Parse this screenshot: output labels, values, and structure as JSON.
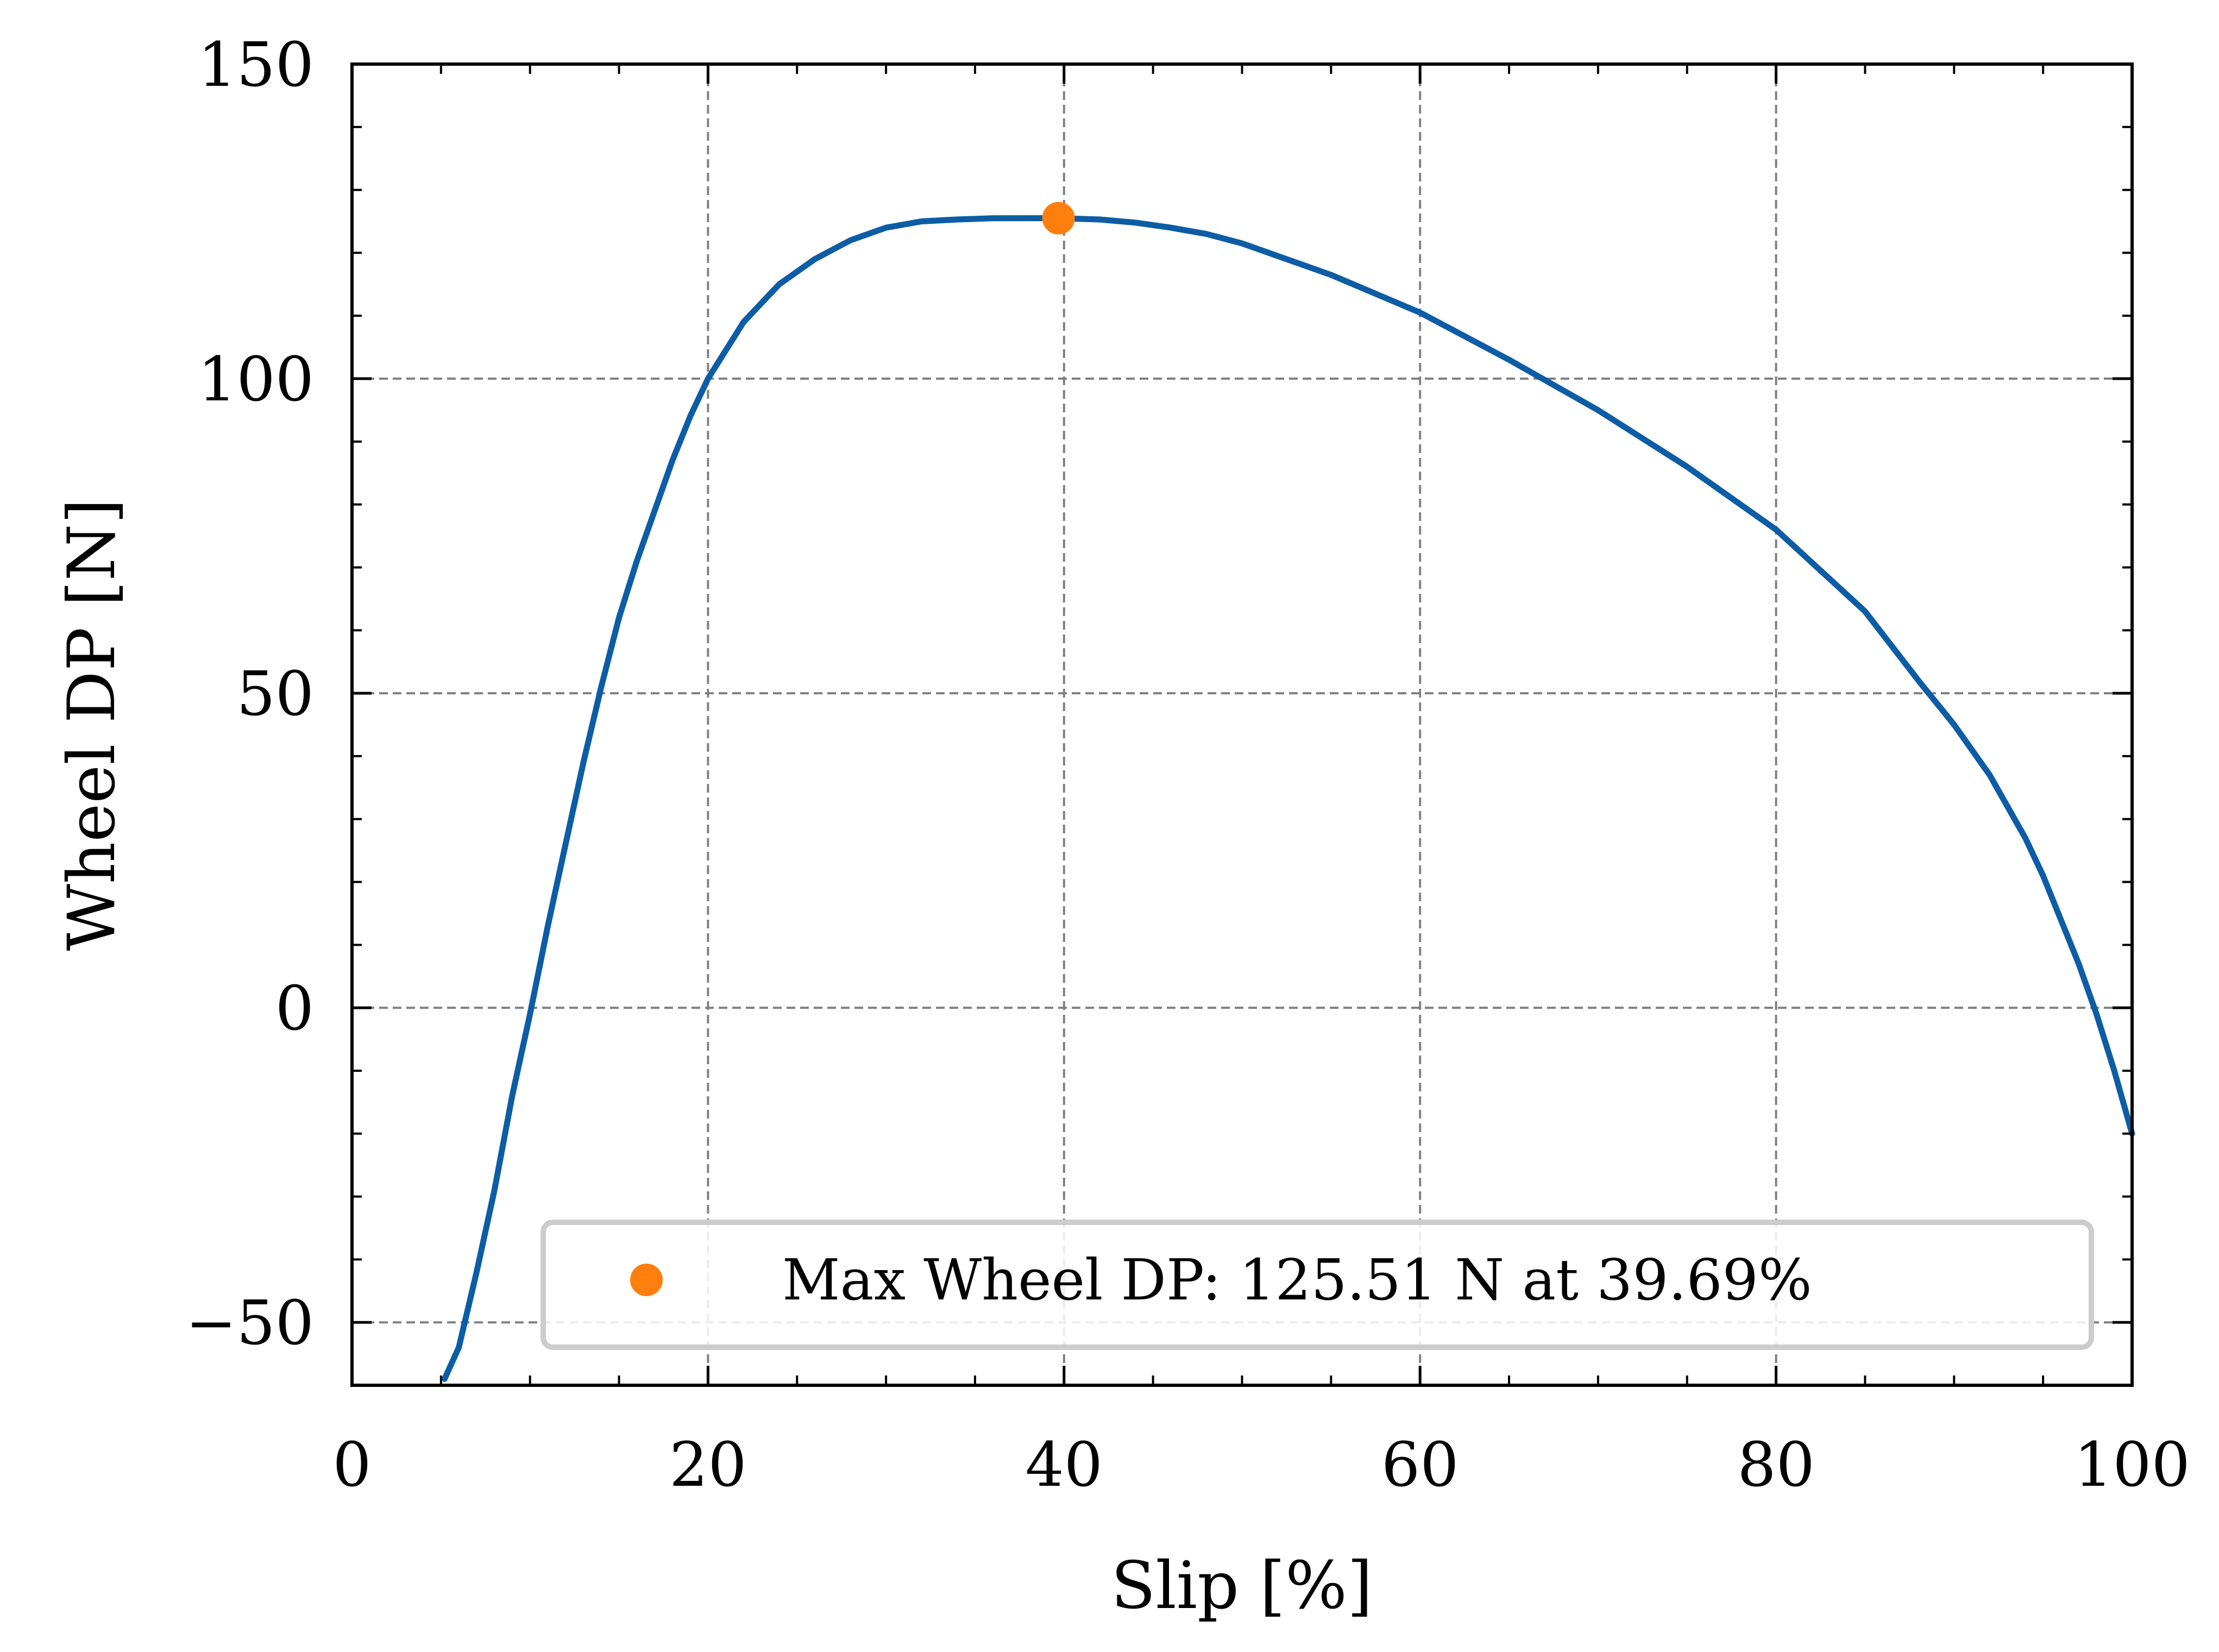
{
  "chart_data": {
    "type": "line",
    "title": "",
    "xlabel": "Slip [%]",
    "ylabel": "Wheel DP [N]",
    "xlim": [
      0,
      100
    ],
    "ylim": [
      -60,
      150
    ],
    "xticks": [
      0,
      20,
      40,
      60,
      80,
      100
    ],
    "yticks": [
      -50,
      0,
      50,
      100,
      150
    ],
    "xtick_labels": [
      "0",
      "20",
      "40",
      "60",
      "80",
      "100"
    ],
    "ytick_labels": [
      "−50",
      "0",
      "50",
      "100",
      "150"
    ],
    "grid": true,
    "legend_position": "bottom-right",
    "colors": {
      "line": "#0c5da5",
      "marker": "#ff7f0e",
      "grid": "#808080"
    },
    "series": [
      {
        "label": "",
        "x": [
          5.2,
          6,
          7,
          8,
          9,
          10,
          11,
          12,
          13,
          14,
          15,
          16,
          17,
          18,
          19,
          20,
          22,
          24,
          26,
          28,
          30,
          32,
          34,
          36,
          38,
          39.69,
          42,
          44,
          46,
          48,
          50,
          55,
          60,
          65,
          70,
          75,
          80,
          85,
          88,
          90,
          92,
          94,
          95,
          96,
          97,
          98,
          99,
          100
        ],
        "y": [
          -59,
          -54,
          -42,
          -29,
          -14,
          -1,
          13,
          26,
          39,
          51,
          62,
          71,
          79,
          87,
          94,
          100,
          109,
          115,
          119,
          122,
          124,
          125,
          125.3,
          125.5,
          125.51,
          125.51,
          125.3,
          124.8,
          124,
          123,
          121.5,
          116.5,
          110.5,
          103,
          95,
          86,
          76,
          63,
          52,
          45,
          37,
          27,
          21,
          14,
          7,
          -1,
          -10,
          -20
        ]
      }
    ],
    "highlight_point": {
      "x": 39.69,
      "y": 125.51
    },
    "legend": {
      "entries": [
        "Max Wheel DP: 125.51 N at 39.69%"
      ]
    }
  }
}
